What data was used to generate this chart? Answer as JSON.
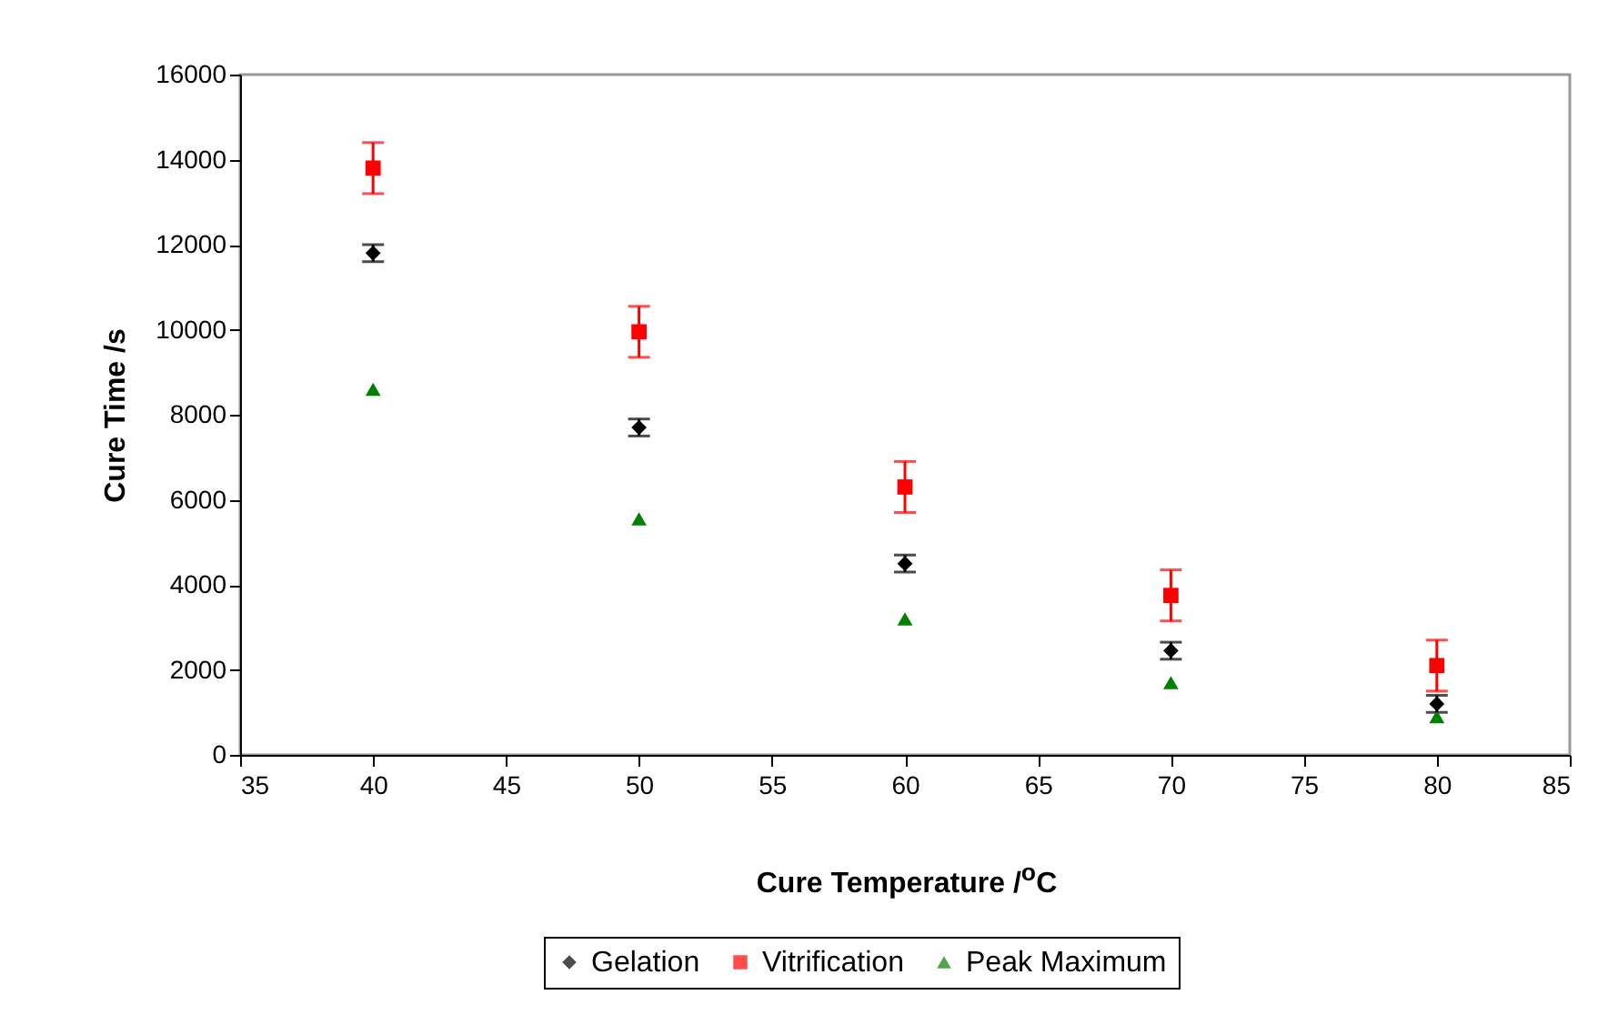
{
  "chart_data": {
    "type": "scatter",
    "xlabel": "Cure Temperature /$^{o}$C",
    "ylabel": "Cure Time /s",
    "x": [
      40,
      50,
      60,
      70,
      80
    ],
    "series": [
      {
        "name": "Gelation",
        "color": "#000000",
        "marker": "diamond",
        "values": [
          11800,
          7700,
          4500,
          2450,
          1200
        ],
        "errors": [
          200,
          200,
          200,
          200,
          200
        ]
      },
      {
        "name": "Vitrification",
        "color": "#ff0000",
        "marker": "square",
        "values": [
          13800,
          9950,
          6300,
          3750,
          2100
        ],
        "errors": [
          600,
          600,
          600,
          600,
          600
        ]
      },
      {
        "name": "Peak Maximum",
        "color": "#008000",
        "marker": "triangle",
        "values": [
          8600,
          5550,
          3200,
          1700,
          900
        ]
      }
    ],
    "xlim": [
      35,
      85
    ],
    "xticks": [
      35,
      40,
      45,
      50,
      55,
      60,
      65,
      70,
      75,
      80,
      85
    ],
    "ylim": [
      0,
      16000
    ],
    "yticks": [
      0,
      2000,
      4000,
      6000,
      8000,
      10000,
      12000,
      14000,
      16000
    ],
    "grid": false,
    "legend": "bottom"
  }
}
